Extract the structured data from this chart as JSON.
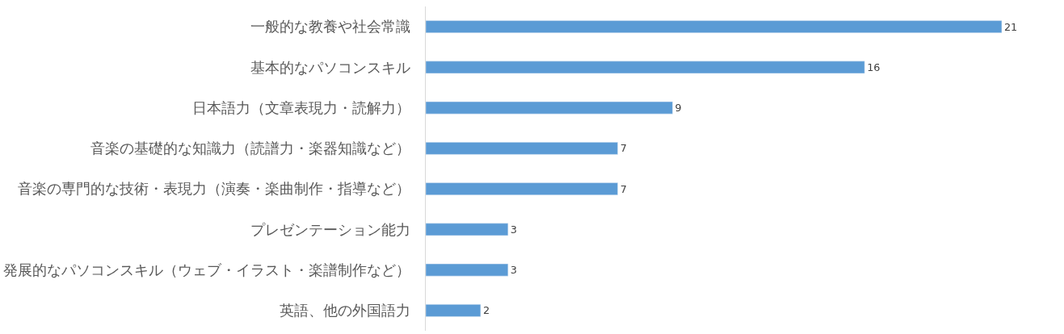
{
  "chart_data": {
    "type": "bar",
    "orientation": "horizontal",
    "data_labels": true,
    "legend": false,
    "tick_labels": "y",
    "categories": [
      "一般的な教養や社会常識",
      "基本的なパソコンスキル",
      "日本語力（文章表現力・読解力）",
      "音楽の基礎的な知識力（読譜力・楽器知識など）",
      "音楽の専門的な技術・表現力（演奏・楽曲制作・指導など）",
      "プレゼンテーション能力",
      "発展的なパソコンスキル（ウェブ・イラスト・楽譜制作など）",
      "英語、他の外国語力"
    ],
    "values": [
      21,
      16,
      9,
      7,
      7,
      3,
      3,
      2
    ],
    "color": "#5b9bd5"
  }
}
